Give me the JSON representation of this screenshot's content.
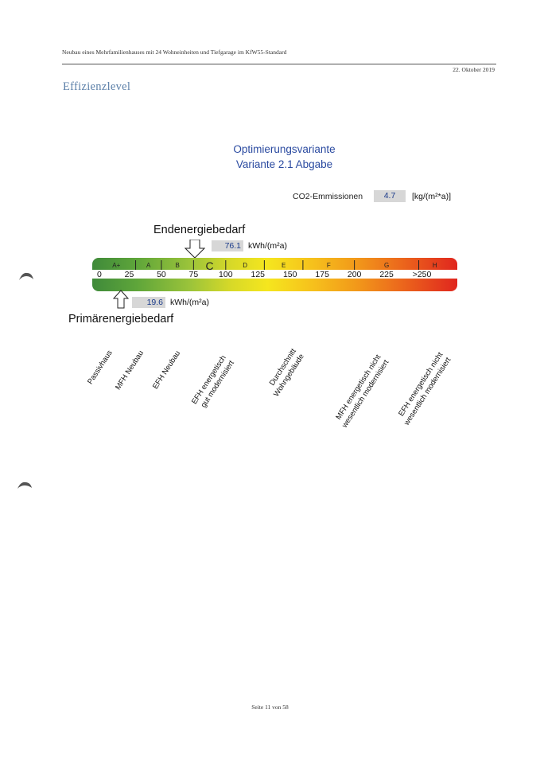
{
  "header": {
    "title": "Neubau eines Mehrfamilienhauses mit 24 Wohneinheiten und Tiefgarage im KfW55-Standard",
    "date": "22. Oktober 2019"
  },
  "section_title": "Effizienzlevel",
  "variant": {
    "line1": "Optimierungsvariante",
    "line2": "Variante 2.1 Abgabe"
  },
  "co2": {
    "label": "CO2-Emmissionen",
    "value": "4.7",
    "unit": "[kg/(m²*a)]"
  },
  "endenergie": {
    "label": "Endenergiebedarf",
    "value": "76.1",
    "numeric": 76.1,
    "unit": "kWh/(m²a)"
  },
  "primaerenergie": {
    "label": "Primärenergiebedarf",
    "value": "19.6",
    "numeric": 19.6,
    "unit": "kWh/(m²a)"
  },
  "scale": {
    "max": 275,
    "classes": [
      {
        "label": "A+",
        "from": 0,
        "to": 30
      },
      {
        "label": "A",
        "from": 30,
        "to": 50
      },
      {
        "label": "B",
        "from": 50,
        "to": 75
      },
      {
        "label": "C",
        "from": 75,
        "to": 100
      },
      {
        "label": "D",
        "from": 100,
        "to": 130
      },
      {
        "label": "E",
        "from": 130,
        "to": 160
      },
      {
        "label": "F",
        "from": 160,
        "to": 200
      },
      {
        "label": "G",
        "from": 200,
        "to": 250
      },
      {
        "label": "H",
        "from": 250,
        "to": 275
      }
    ],
    "ticks": [
      "0",
      "25",
      "50",
      "75",
      "100",
      "125",
      "150",
      "175",
      "200",
      "225",
      ">250"
    ],
    "highlight_class": "C"
  },
  "references": [
    {
      "lines": [
        "Passivhaus"
      ]
    },
    {
      "lines": [
        "MFH Neubau"
      ]
    },
    {
      "lines": [
        "EFH Neubau"
      ]
    },
    {
      "lines": [
        "EFH energetisch",
        "gut modernisiert"
      ]
    },
    {
      "lines": [
        "Durchschnitt",
        "Wohngebäude"
      ]
    },
    {
      "lines": [
        "MFH energetisch nicht",
        "wesentlich modernisiert"
      ]
    },
    {
      "lines": [
        "EFH energetisch nicht",
        "wesentlich modernisiert"
      ]
    }
  ],
  "footer": "Seite 11 von 58"
}
